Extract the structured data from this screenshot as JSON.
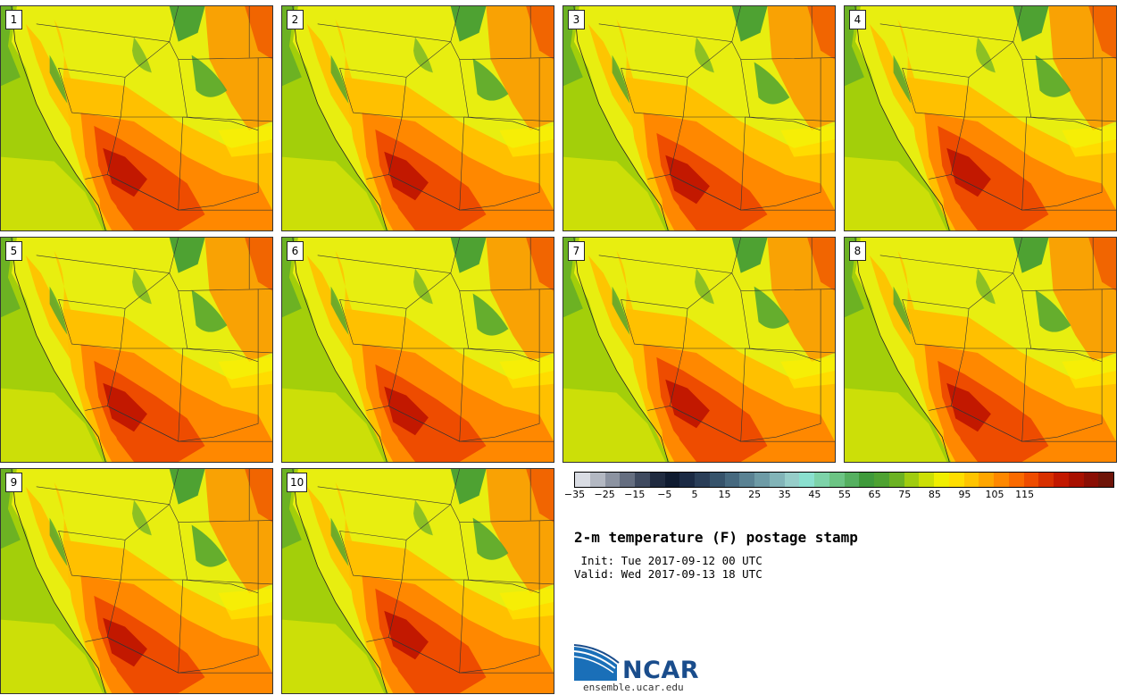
{
  "members": [
    "1",
    "2",
    "3",
    "4",
    "5",
    "6",
    "7",
    "8",
    "9",
    "10"
  ],
  "colorbar": {
    "colors": [
      "#d9dce3",
      "#b3b8c2",
      "#8c93a1",
      "#656e80",
      "#3f4a5f",
      "#202b40",
      "#0f1b30",
      "#1b2a44",
      "#2a3e58",
      "#36536b",
      "#46697f",
      "#5a8293",
      "#6e9ba6",
      "#82b4b8",
      "#96cdc9",
      "#8ae0cf",
      "#7dd3a9",
      "#6cc484",
      "#55b060",
      "#3f9a3b",
      "#4ea232",
      "#6cb223",
      "#a0cc10",
      "#ccdf05",
      "#f0ee00",
      "#ffde00",
      "#ffc400",
      "#ffa600",
      "#ff8800",
      "#fa6a00",
      "#ee4c00",
      "#d83000",
      "#c21800",
      "#a81000",
      "#8a0e04",
      "#6e1408"
    ],
    "tick_labels": [
      "−35",
      "−25",
      "−15",
      "−5",
      "5",
      "15",
      "25",
      "35",
      "45",
      "55",
      "65",
      "75",
      "85",
      "95",
      "105",
      "115"
    ]
  },
  "title": "2-m temperature (F) postage stamp",
  "init_text": " Init: Tue 2017-09-12 00 UTC",
  "valid_text": "Valid: Wed 2017-09-13 18 UTC",
  "logo": {
    "text": "NCAR",
    "site": "ensemble.ucar.edu"
  },
  "palette": {
    "ocean": "#a3cf0a",
    "ocean_far": "#ccdf08",
    "coast_green": "#6cb223",
    "cool_yellow": "#e8ee10",
    "mid_yellow": "#ffef00",
    "warm": "#ffc000",
    "hot": "#ff8800",
    "very_hot": "#ee4c00",
    "extreme": "#c21800",
    "mountain_green": "#4ea232"
  }
}
